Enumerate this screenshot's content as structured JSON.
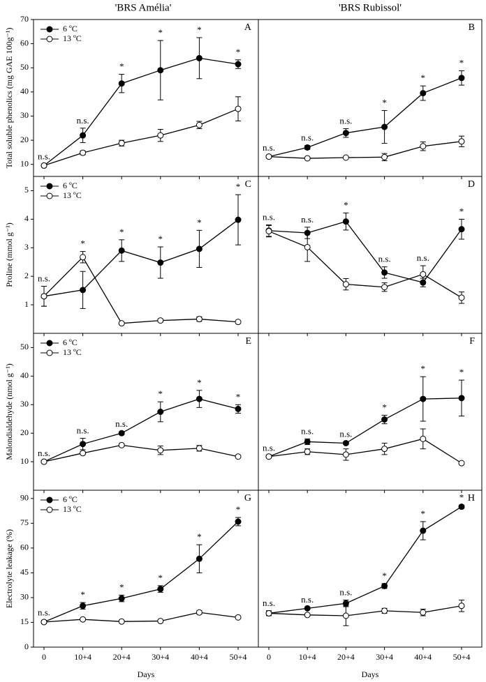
{
  "column_titles": [
    "'BRS Amélia'",
    "'BRS Rubissol'"
  ],
  "chart_data": [
    {
      "type": "line",
      "panel_label": "A",
      "y_label": "Total soluble phenolics (mg GAE 100g⁻¹)",
      "ylim": [
        5,
        70
      ],
      "yticks": [
        10,
        20,
        30,
        40,
        50,
        60,
        70
      ],
      "series": [
        {
          "name": "6 ºC",
          "marker": "filled",
          "color": "#000000",
          "values": [
            9.5,
            22,
            43.5,
            49,
            54,
            51.5
          ],
          "errors": [
            0.5,
            3,
            3.8,
            12.3,
            8.5,
            1.8
          ]
        },
        {
          "name": "13 ºC",
          "marker": "open",
          "color": "#000000",
          "values": [
            9.5,
            14.8,
            18.8,
            22,
            26.3,
            33
          ],
          "errors": [
            0.5,
            0.8,
            1.2,
            2.5,
            1.5,
            5
          ]
        }
      ],
      "annotations": [
        "n.s.",
        "n.s.",
        "*",
        "*",
        "*",
        "*"
      ]
    },
    {
      "type": "line",
      "panel_label": "B",
      "ylim": [
        5,
        70
      ],
      "series": [
        {
          "marker": "filled",
          "color": "#000000",
          "values": [
            13.2,
            17,
            23,
            25.5,
            39.5,
            45.8
          ],
          "errors": [
            0.5,
            0.8,
            1.8,
            6.8,
            3,
            3
          ]
        },
        {
          "marker": "open",
          "color": "#000000",
          "values": [
            13.2,
            12.5,
            12.8,
            13,
            17.5,
            19.5
          ],
          "errors": [
            0.5,
            0.5,
            0.5,
            1.5,
            1.8,
            2.2
          ]
        }
      ],
      "annotations": [
        "n.s.",
        "n.s.",
        "n.s.",
        "*",
        "*",
        "*"
      ]
    },
    {
      "type": "line",
      "panel_label": "C",
      "y_label": "Proline (mmol g⁻¹)",
      "ylim": [
        0,
        5.5
      ],
      "yticks": [
        1,
        2,
        3,
        4,
        5
      ],
      "series": [
        {
          "name": "6 ºC",
          "marker": "filled",
          "color": "#000000",
          "values": [
            1.3,
            1.52,
            2.9,
            2.48,
            2.96,
            3.98
          ],
          "errors": [
            0.35,
            0.65,
            0.38,
            0.55,
            0.65,
            0.88
          ]
        },
        {
          "name": "13 ºC",
          "marker": "open",
          "color": "#000000",
          "values": [
            1.3,
            2.67,
            0.35,
            0.45,
            0.5,
            0.4
          ],
          "errors": [
            0.35,
            0.2,
            0.03,
            0.05,
            0.08,
            0.03
          ]
        }
      ],
      "annotations": [
        "n.s.",
        "*",
        "*",
        "*",
        "*",
        "*"
      ]
    },
    {
      "type": "line",
      "panel_label": "D",
      "ylim": [
        0,
        5.5
      ],
      "series": [
        {
          "marker": "filled",
          "color": "#000000",
          "values": [
            3.6,
            3.52,
            3.92,
            2.13,
            1.78,
            3.65
          ],
          "errors": [
            0.2,
            0.2,
            0.3,
            0.2,
            0.15,
            0.35
          ]
        },
        {
          "marker": "open",
          "color": "#000000",
          "values": [
            3.58,
            3.02,
            1.72,
            1.62,
            2.07,
            1.25
          ],
          "errors": [
            0.2,
            0.5,
            0.2,
            0.15,
            0.3,
            0.2
          ]
        }
      ],
      "annotations": [
        "n.s.",
        "n.s.",
        "*",
        "n.s.",
        "n.s.",
        "*"
      ]
    },
    {
      "type": "line",
      "panel_label": "E",
      "y_label": "Malondialdehyde (nmol g⁻¹)",
      "ylim": [
        0,
        55
      ],
      "yticks": [
        10,
        20,
        30,
        40,
        50
      ],
      "series": [
        {
          "name": "6 ºC",
          "marker": "filled",
          "color": "#000000",
          "values": [
            10,
            16.2,
            20,
            27.5,
            32,
            28.5
          ],
          "errors": [
            0.3,
            2,
            0.5,
            3.5,
            3,
            1.5
          ]
        },
        {
          "name": "13 ºC",
          "marker": "open",
          "color": "#000000",
          "values": [
            10,
            13,
            15.8,
            14,
            14.7,
            11.8
          ],
          "errors": [
            0.3,
            0.5,
            0.5,
            1.5,
            1,
            0.3
          ]
        }
      ],
      "annotations": [
        "n.s.",
        "n.s.",
        "n.s.",
        "*",
        "*",
        "*"
      ]
    },
    {
      "type": "line",
      "panel_label": "F",
      "ylim": [
        0,
        55
      ],
      "series": [
        {
          "marker": "filled",
          "color": "#000000",
          "values": [
            11.8,
            17,
            16.5,
            24.8,
            32,
            32.3
          ],
          "errors": [
            0.3,
            1,
            0.5,
            1.5,
            7.8,
            6.3
          ]
        },
        {
          "marker": "open",
          "color": "#000000",
          "values": [
            11.8,
            13.5,
            12.5,
            14.5,
            18,
            9.5
          ],
          "errors": [
            0.3,
            1,
            2,
            2,
            3.5,
            0.3
          ]
        }
      ],
      "annotations": [
        "n.s.",
        "n.s.",
        "n.s.",
        "*",
        "*",
        "*"
      ]
    },
    {
      "type": "line",
      "panel_label": "G",
      "y_label": "Electrolyte leakage (%)",
      "ylim": [
        0,
        95
      ],
      "yticks": [
        0,
        15,
        30,
        45,
        60,
        75,
        90
      ],
      "categories": [
        "0",
        "10+4",
        "20+4",
        "30+4",
        "40+4",
        "50+4"
      ],
      "x_label": "Days",
      "series": [
        {
          "name": "6 ºC",
          "marker": "filled",
          "color": "#000000",
          "values": [
            15.2,
            25,
            29.5,
            35.2,
            53.5,
            76
          ],
          "errors": [
            1,
            2,
            2,
            2,
            8.5,
            2.5
          ]
        },
        {
          "name": "13 ºC",
          "marker": "open",
          "color": "#000000",
          "values": [
            15.2,
            16.8,
            15.5,
            15.8,
            21,
            18
          ],
          "errors": [
            1,
            0.5,
            0.5,
            0.5,
            1,
            0.5
          ]
        }
      ],
      "annotations": [
        "n.s.",
        "*",
        "*",
        "*",
        "*",
        "*"
      ]
    },
    {
      "type": "line",
      "panel_label": "H",
      "ylim": [
        0,
        95
      ],
      "categories": [
        "0",
        "10+4",
        "20+4",
        "30+4",
        "40+4",
        "50+4"
      ],
      "x_label": "Days",
      "series": [
        {
          "marker": "filled",
          "color": "#000000",
          "values": [
            20.5,
            23.5,
            26.5,
            37,
            70.5,
            85
          ],
          "errors": [
            1.5,
            0.5,
            2,
            1.5,
            5.5,
            1
          ]
        },
        {
          "marker": "open",
          "color": "#000000",
          "values": [
            20.5,
            19.5,
            19,
            22,
            21,
            25
          ],
          "errors": [
            1.5,
            0.5,
            6,
            1.5,
            2,
            3.5
          ]
        }
      ],
      "annotations": [
        "n.s.",
        "n.s.",
        "n.s.",
        "*",
        "*",
        "*"
      ]
    }
  ]
}
